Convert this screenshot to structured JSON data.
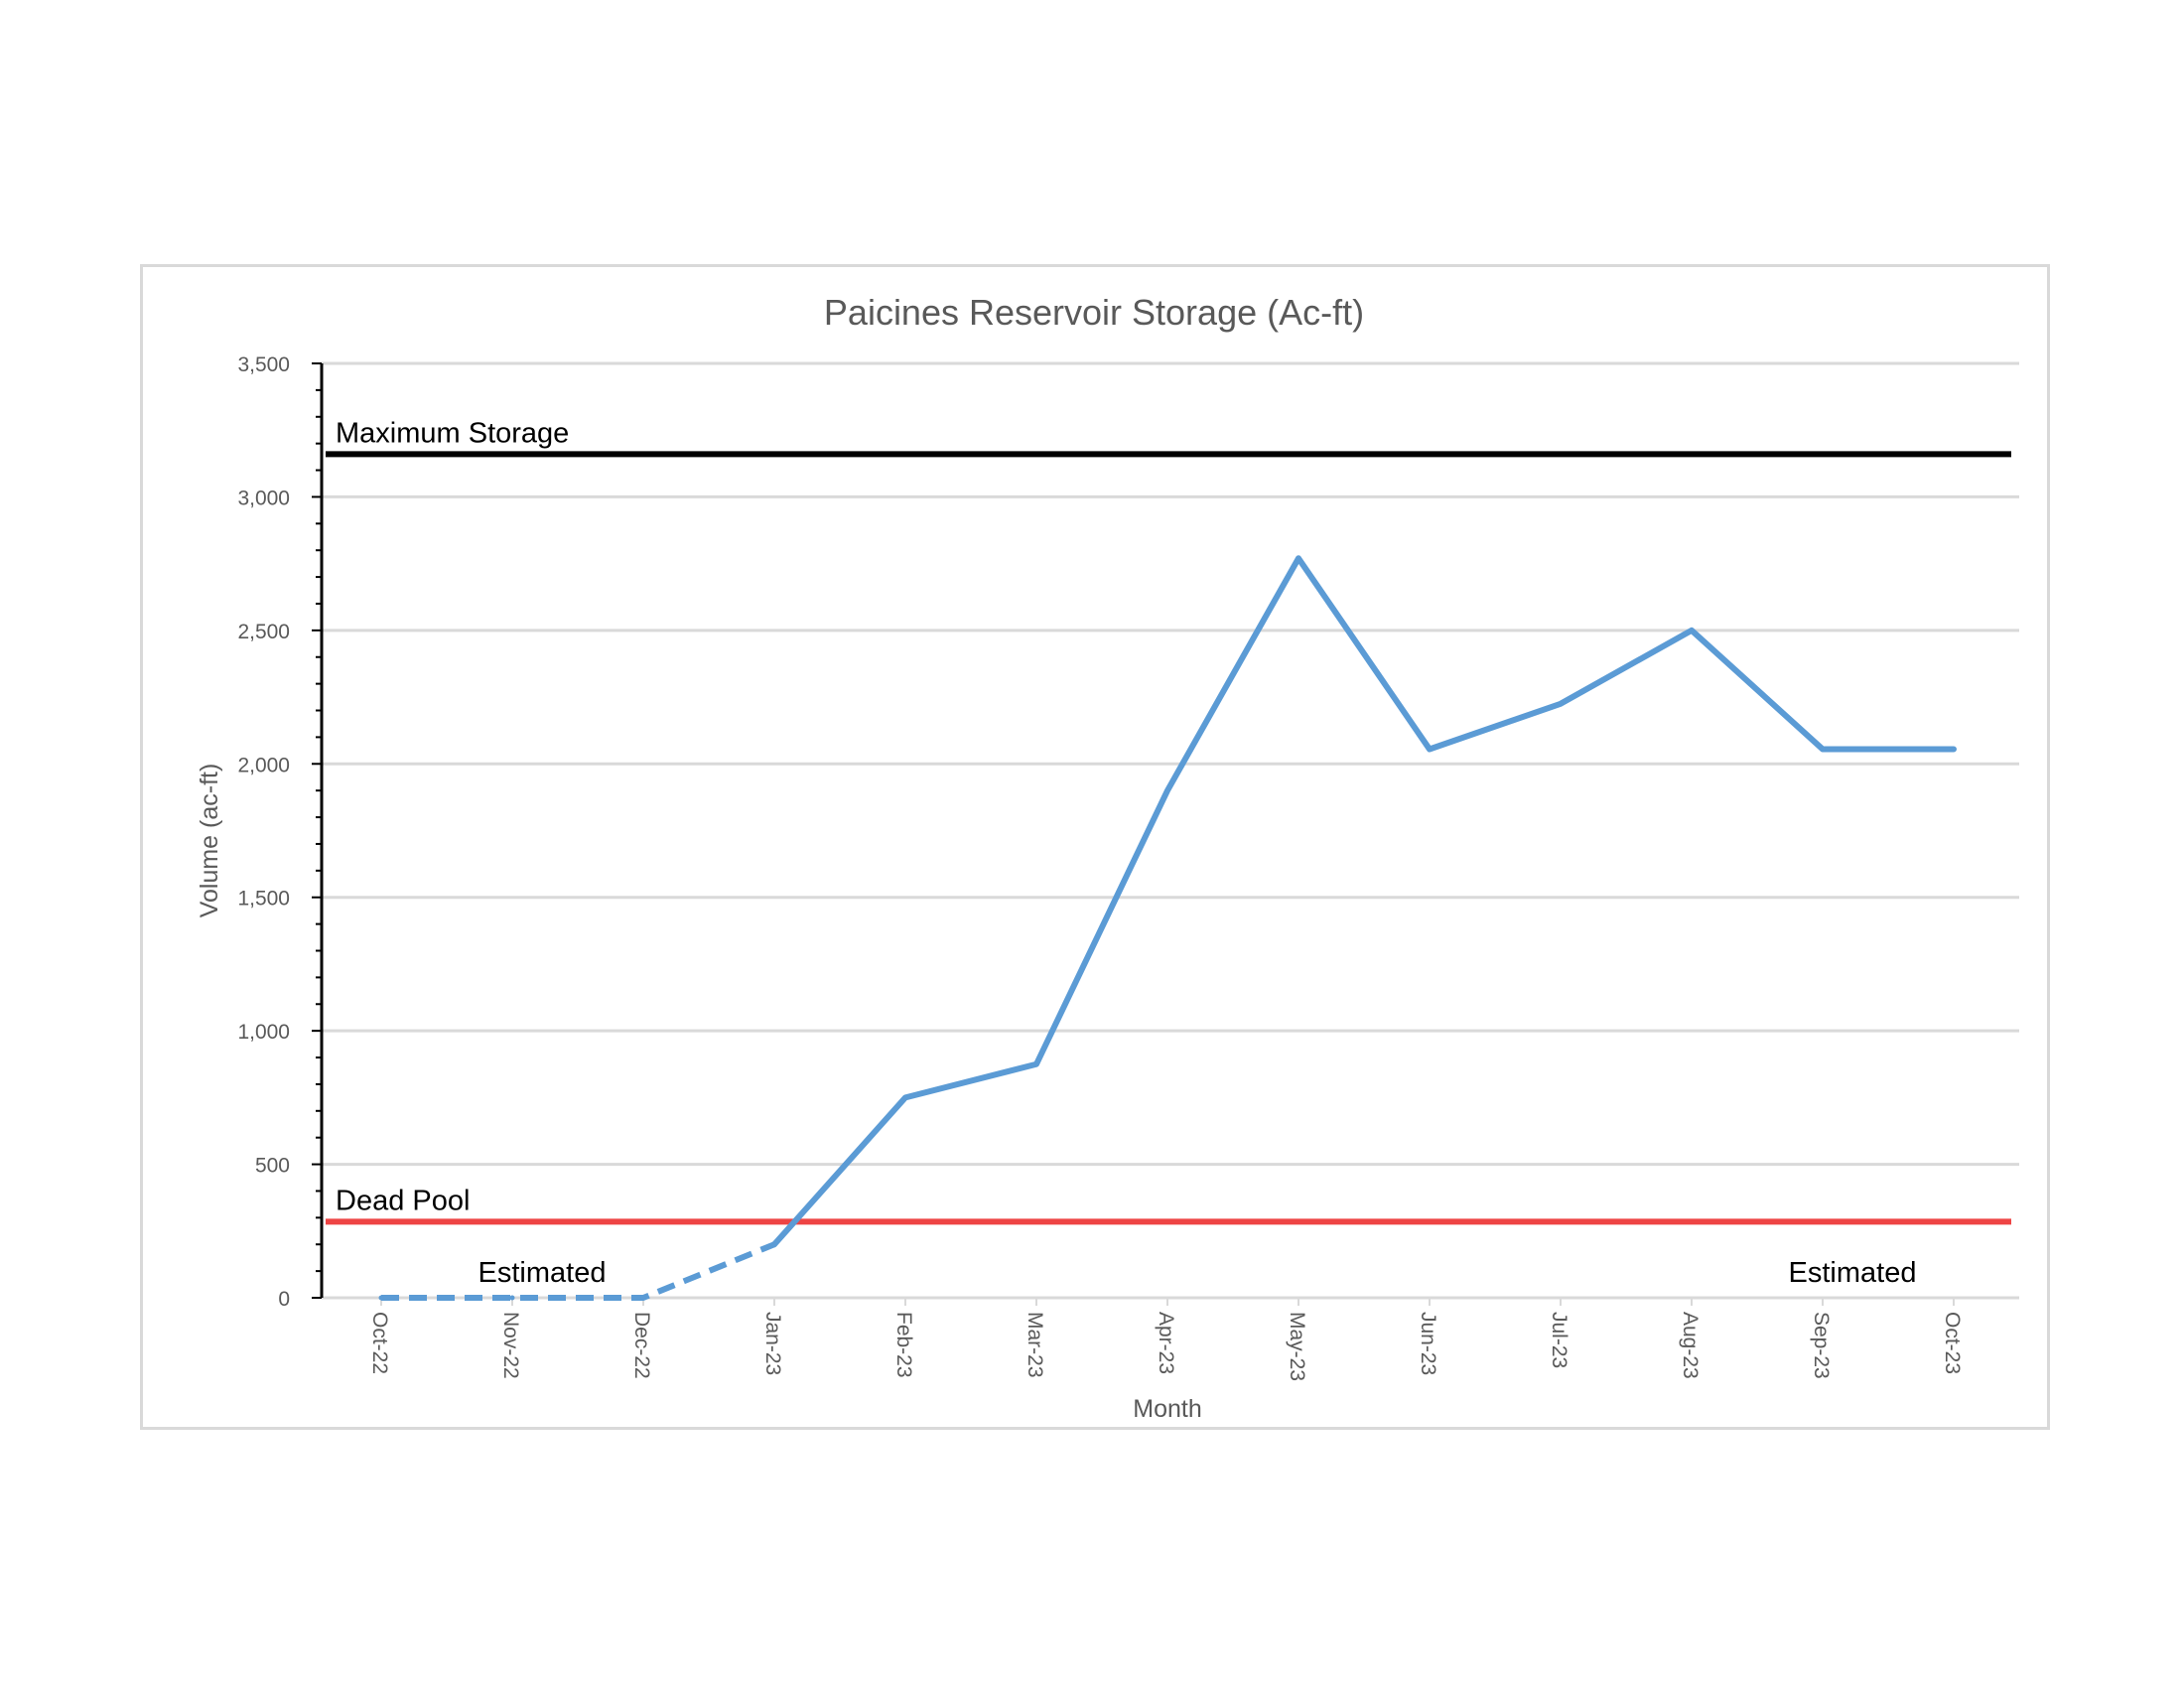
{
  "chart_data": {
    "type": "line",
    "title": "Paicines Reservoir Storage (Ac-ft)",
    "xlabel": "Month",
    "ylabel": "Volume (ac-ft)",
    "ylim": [
      0,
      3500
    ],
    "yticks": [
      0,
      500,
      1000,
      1500,
      2000,
      2500,
      3000,
      3500
    ],
    "ytick_labels": [
      "0",
      "500",
      "1,000",
      "1,500",
      "2,000",
      "2,500",
      "3,000",
      "3,500"
    ],
    "categories": [
      "Oct-22",
      "Nov-22",
      "Dec-22",
      "Jan-23",
      "Feb-23",
      "Mar-23",
      "Apr-23",
      "May-23",
      "Jun-23",
      "Jul-23",
      "Aug-23",
      "Sep-23",
      "Oct-23"
    ],
    "series": [
      {
        "values": [
          0,
          0,
          0,
          200,
          750,
          875,
          1900,
          2770,
          2055,
          2225,
          2500,
          2055,
          2055
        ],
        "color": "#5b9bd5",
        "dashed_through_index": 3
      }
    ],
    "reference_lines": [
      {
        "label": "Maximum Storage",
        "value": 3160,
        "color": "#000000"
      },
      {
        "label": "Dead Pool",
        "value": 285,
        "color": "#ee4444"
      }
    ],
    "annotations": [
      {
        "text": "Estimated",
        "near_category": "Nov-22"
      },
      {
        "text": "Estimated",
        "near_category": "Sep-23"
      }
    ],
    "grid": true,
    "legend": "none"
  }
}
